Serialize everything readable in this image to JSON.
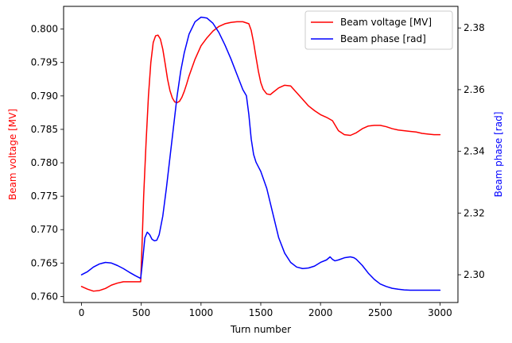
{
  "chart_data": {
    "type": "line",
    "xlabel": "Turn number",
    "ylabel_left": "Beam voltage [MV]",
    "ylabel_right": "Beam phase [rad]",
    "xlim": [
      -150,
      3150
    ],
    "ylim_left": [
      0.7591,
      0.8034
    ],
    "ylim_right": [
      2.291,
      2.387
    ],
    "x_ticks": [
      0,
      500,
      1000,
      1500,
      2000,
      2500,
      3000
    ],
    "y_ticks_left": [
      0.76,
      0.765,
      0.77,
      0.775,
      0.78,
      0.785,
      0.79,
      0.795,
      0.8
    ],
    "y_ticks_right": [
      2.3,
      2.32,
      2.34,
      2.36,
      2.38
    ],
    "y_tick_decimals_left": 3,
    "y_tick_decimals_right": 2,
    "grid": false,
    "legend_position": "top-right",
    "series": [
      {
        "name": "Beam voltage [MV]",
        "axis": "left",
        "color": "#ff0000",
        "x": [
          0,
          50,
          100,
          150,
          200,
          250,
          300,
          350,
          400,
          450,
          495,
          505,
          520,
          540,
          560,
          580,
          600,
          620,
          640,
          660,
          680,
          700,
          720,
          740,
          760,
          780,
          800,
          820,
          840,
          860,
          880,
          900,
          950,
          1000,
          1050,
          1100,
          1150,
          1200,
          1250,
          1300,
          1350,
          1400,
          1420,
          1440,
          1460,
          1480,
          1500,
          1520,
          1550,
          1580,
          1600,
          1650,
          1700,
          1750,
          1800,
          1850,
          1900,
          1950,
          2000,
          2050,
          2100,
          2150,
          2200,
          2250,
          2300,
          2350,
          2400,
          2450,
          2500,
          2550,
          2600,
          2650,
          2700,
          2750,
          2800,
          2850,
          2900,
          2950,
          3000
        ],
        "values": [
          0.7615,
          0.7611,
          0.7608,
          0.7609,
          0.7612,
          0.7617,
          0.762,
          0.7622,
          0.7622,
          0.7622,
          0.7622,
          0.767,
          0.775,
          0.783,
          0.79,
          0.795,
          0.798,
          0.799,
          0.7991,
          0.7985,
          0.797,
          0.7948,
          0.7925,
          0.7908,
          0.7897,
          0.7891,
          0.789,
          0.7892,
          0.7898,
          0.7907,
          0.7918,
          0.793,
          0.7955,
          0.7975,
          0.7987,
          0.7997,
          0.8004,
          0.8008,
          0.801,
          0.8011,
          0.8011,
          0.8008,
          0.7998,
          0.798,
          0.7958,
          0.7937,
          0.792,
          0.791,
          0.7903,
          0.7902,
          0.7905,
          0.7912,
          0.7916,
          0.7915,
          0.7905,
          0.7895,
          0.7885,
          0.7878,
          0.7872,
          0.7868,
          0.7863,
          0.7848,
          0.7842,
          0.7841,
          0.7845,
          0.7851,
          0.7855,
          0.7856,
          0.7856,
          0.7854,
          0.7851,
          0.7849,
          0.7848,
          0.7847,
          0.7846,
          0.7844,
          0.7843,
          0.7842,
          0.7842
        ]
      },
      {
        "name": "Beam phase [rad]",
        "axis": "right",
        "color": "#0000ff",
        "x": [
          0,
          50,
          100,
          150,
          200,
          250,
          300,
          350,
          400,
          450,
          495,
          510,
          530,
          550,
          570,
          590,
          610,
          630,
          650,
          680,
          710,
          740,
          770,
          800,
          830,
          860,
          900,
          950,
          1000,
          1050,
          1100,
          1150,
          1200,
          1250,
          1300,
          1350,
          1380,
          1400,
          1420,
          1440,
          1460,
          1480,
          1500,
          1550,
          1600,
          1650,
          1700,
          1750,
          1800,
          1850,
          1900,
          1950,
          2000,
          2050,
          2080,
          2100,
          2120,
          2150,
          2200,
          2250,
          2280,
          2300,
          2350,
          2400,
          2450,
          2500,
          2550,
          2600,
          2650,
          2700,
          2750,
          2800,
          2850,
          2900,
          2950,
          3000
        ],
        "values": [
          2.3,
          2.301,
          2.3025,
          2.3035,
          2.304,
          2.3038,
          2.303,
          2.302,
          2.3008,
          2.2997,
          2.2988,
          2.304,
          2.312,
          2.3138,
          2.313,
          2.3115,
          2.311,
          2.3112,
          2.313,
          2.319,
          2.328,
          2.338,
          2.348,
          2.358,
          2.366,
          2.372,
          2.378,
          2.382,
          2.3835,
          2.3832,
          2.3815,
          2.3785,
          2.3745,
          2.37,
          2.365,
          2.36,
          2.358,
          2.352,
          2.344,
          2.339,
          2.3365,
          2.335,
          2.3335,
          2.328,
          2.32,
          2.312,
          2.307,
          2.304,
          2.3025,
          2.302,
          2.3022,
          2.3028,
          2.304,
          2.3048,
          2.3058,
          2.305,
          2.3045,
          2.3048,
          2.3055,
          2.3058,
          2.3055,
          2.305,
          2.303,
          2.3005,
          2.2985,
          2.297,
          2.2962,
          2.2956,
          2.2953,
          2.2951,
          2.295,
          2.295,
          2.295,
          2.295,
          2.295,
          2.295
        ]
      }
    ]
  }
}
